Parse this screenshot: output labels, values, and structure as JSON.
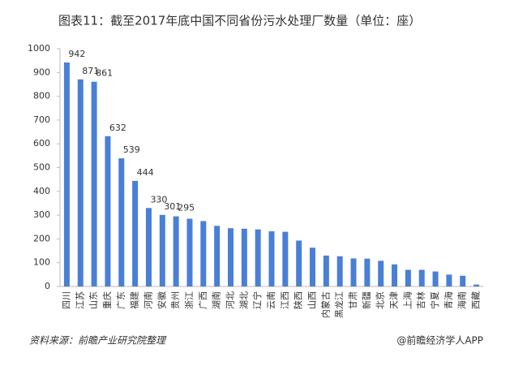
{
  "chart_data": {
    "type": "bar",
    "title": "图表11：截至2017年底中国不同省份污水处理厂数量（单位：座）",
    "source": "资料来源：前瞻产业研究院整理",
    "footer": "@前瞻经济学人APP",
    "categories": [
      "四川",
      "江苏",
      "山东",
      "重庆",
      "广东",
      "福建",
      "河南",
      "安徽",
      "贵州",
      "浙江",
      "广西",
      "湖南",
      "河北",
      "湖北",
      "辽宁",
      "云南",
      "江西",
      "陕西",
      "山西",
      "内蒙古",
      "黑龙江",
      "甘肃",
      "新疆",
      "北京",
      "天津",
      "上海",
      "吉林",
      "宁夏",
      "青海",
      "海南",
      "西藏"
    ],
    "values": [
      942,
      871,
      861,
      632,
      539,
      444,
      330,
      301,
      295,
      285,
      275,
      255,
      245,
      243,
      240,
      232,
      230,
      193,
      163,
      130,
      127,
      118,
      117,
      108,
      93,
      70,
      70,
      63,
      50,
      45,
      8
    ],
    "value_labels": [
      "942",
      "871",
      "861",
      "632",
      "539",
      "444",
      "330",
      "301",
      "295",
      null,
      null,
      null,
      null,
      null,
      null,
      null,
      null,
      null,
      null,
      null,
      null,
      null,
      null,
      null,
      null,
      null,
      null,
      null,
      null,
      null,
      null
    ],
    "color": "#4a7fd6",
    "ylim": [
      0,
      1000
    ],
    "yticks": [
      0,
      100,
      200,
      300,
      400,
      500,
      600,
      700,
      800,
      900,
      1000
    ],
    "grid": false
  }
}
